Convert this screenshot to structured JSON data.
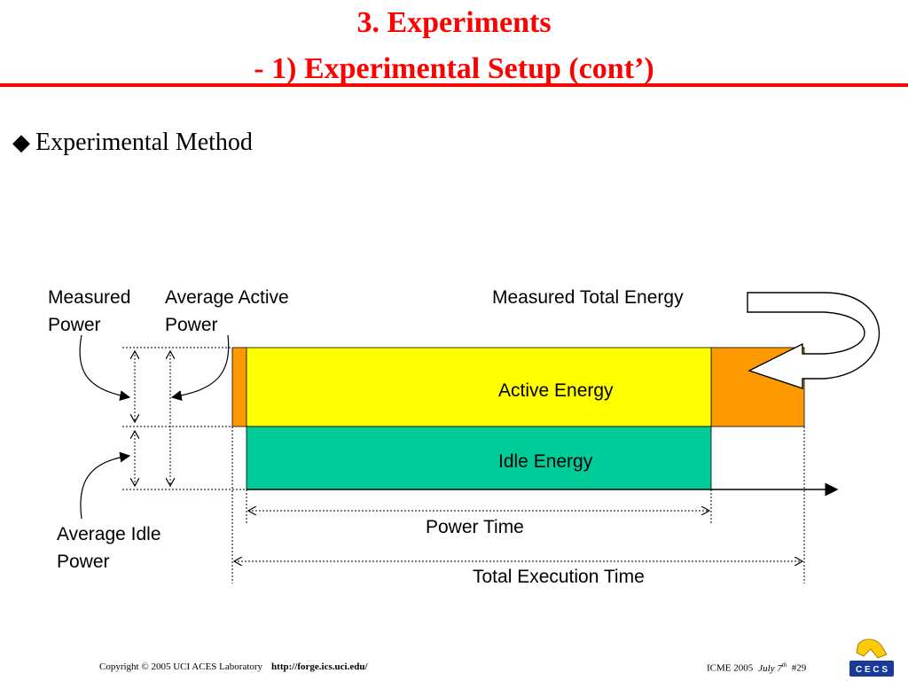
{
  "slide": {
    "title_line1": "3. Experiments",
    "title_line2": "- 1) Experimental Setup (cont’)",
    "bullet": "Experimental Method"
  },
  "diagram": {
    "labels": {
      "measured_power_l1": "Measured",
      "measured_power_l2": "Power",
      "avg_active_l1": "Average Active",
      "avg_active_l2": "Power",
      "measured_total": "Measured Total Energy",
      "active_energy": "Active Energy",
      "idle_energy": "Idle Energy",
      "avg_idle_l1": "Average Idle",
      "avg_idle_l2": "Power",
      "power_time": "Power Time",
      "total_time": "Total Execution Time"
    },
    "colors": {
      "active": "#ffff00",
      "idle": "#00cc99",
      "extra": "#ff9900"
    }
  },
  "footer": {
    "copyright": "Copyright © 2005  UCI ACES Laboratory",
    "url": "http://forge.ics.uci.edu/",
    "conf": "ICME 2005",
    "date": "July 7",
    "date_sup": "th",
    "page": "#29",
    "logo_text": "C E C S"
  }
}
